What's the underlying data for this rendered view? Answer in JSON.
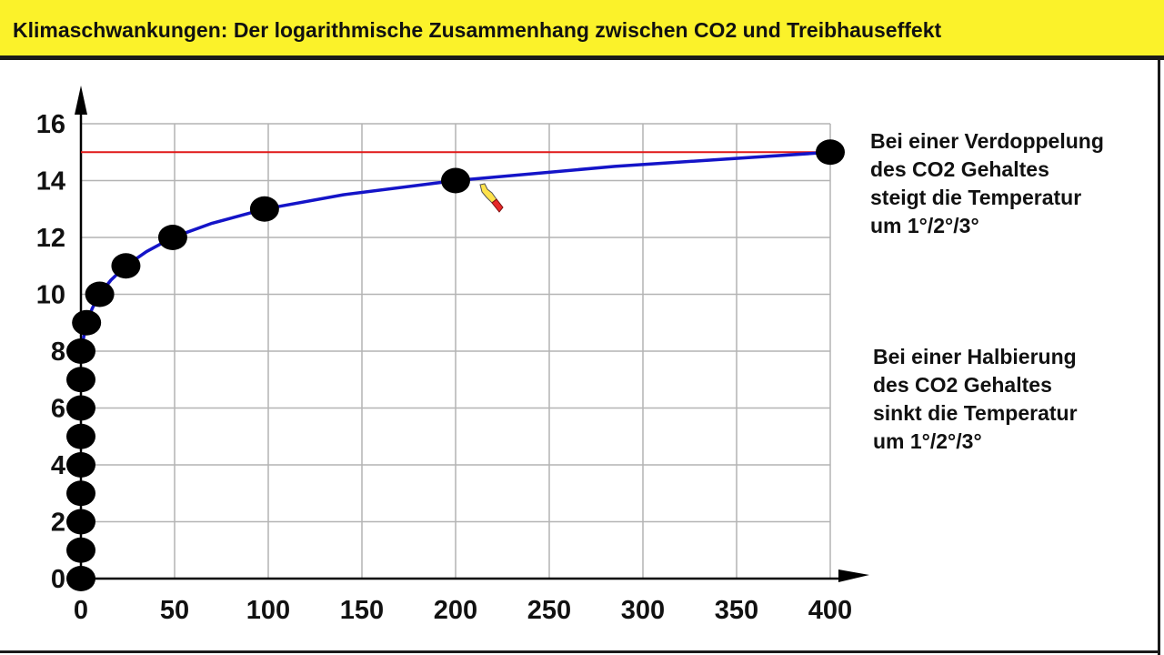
{
  "title": "Klimaschwankungen: Der logarithmische Zusammenhang zwischen CO2 und Treibhauseffekt",
  "notes": {
    "doubling": [
      "Bei einer Verdoppelung",
      "des CO2 Gehaltes",
      "steigt die Temperatur",
      "um 1°/2°/3°"
    ],
    "halving": [
      "Bei einer Halbierung",
      "des CO2 Gehaltes",
      "sinkt die Temperatur",
      "um 1°/2°/3°"
    ]
  },
  "colors": {
    "title_bg": "#fbf22a",
    "curve": "#1414c8",
    "reference_line": "#e01818",
    "points": "#000000",
    "grid": "#b4b4b4"
  },
  "icons": {
    "cursor": "pointing-hand-cursor-icon"
  },
  "chart_data": {
    "type": "scatter",
    "x_ticks": [
      0,
      50,
      100,
      150,
      200,
      250,
      300,
      350,
      400
    ],
    "y_ticks": [
      0,
      2,
      4,
      6,
      8,
      10,
      12,
      14,
      16
    ],
    "xlim": [
      0,
      400
    ],
    "ylim": [
      0,
      16
    ],
    "grid": true,
    "points": [
      {
        "x": 0,
        "y": 0
      },
      {
        "x": 0,
        "y": 1
      },
      {
        "x": 0,
        "y": 2
      },
      {
        "x": 0,
        "y": 3
      },
      {
        "x": 0,
        "y": 4
      },
      {
        "x": 0,
        "y": 5
      },
      {
        "x": 0,
        "y": 6
      },
      {
        "x": 0,
        "y": 7
      },
      {
        "x": 0,
        "y": 8
      },
      {
        "x": 3,
        "y": 9
      },
      {
        "x": 10,
        "y": 10
      },
      {
        "x": 24,
        "y": 11
      },
      {
        "x": 49,
        "y": 12
      },
      {
        "x": 98,
        "y": 13
      },
      {
        "x": 200,
        "y": 14
      },
      {
        "x": 400,
        "y": 15
      }
    ],
    "curve": [
      {
        "x": 0,
        "y": 8
      },
      {
        "x": 1.5,
        "y": 8.5
      },
      {
        "x": 3,
        "y": 9
      },
      {
        "x": 6,
        "y": 9.5
      },
      {
        "x": 10,
        "y": 10
      },
      {
        "x": 16,
        "y": 10.5
      },
      {
        "x": 24,
        "y": 11
      },
      {
        "x": 35,
        "y": 11.5
      },
      {
        "x": 49,
        "y": 12
      },
      {
        "x": 70,
        "y": 12.5
      },
      {
        "x": 98,
        "y": 13
      },
      {
        "x": 140,
        "y": 13.5
      },
      {
        "x": 200,
        "y": 14
      },
      {
        "x": 285,
        "y": 14.5
      },
      {
        "x": 400,
        "y": 15
      }
    ],
    "reference_y": 15
  }
}
